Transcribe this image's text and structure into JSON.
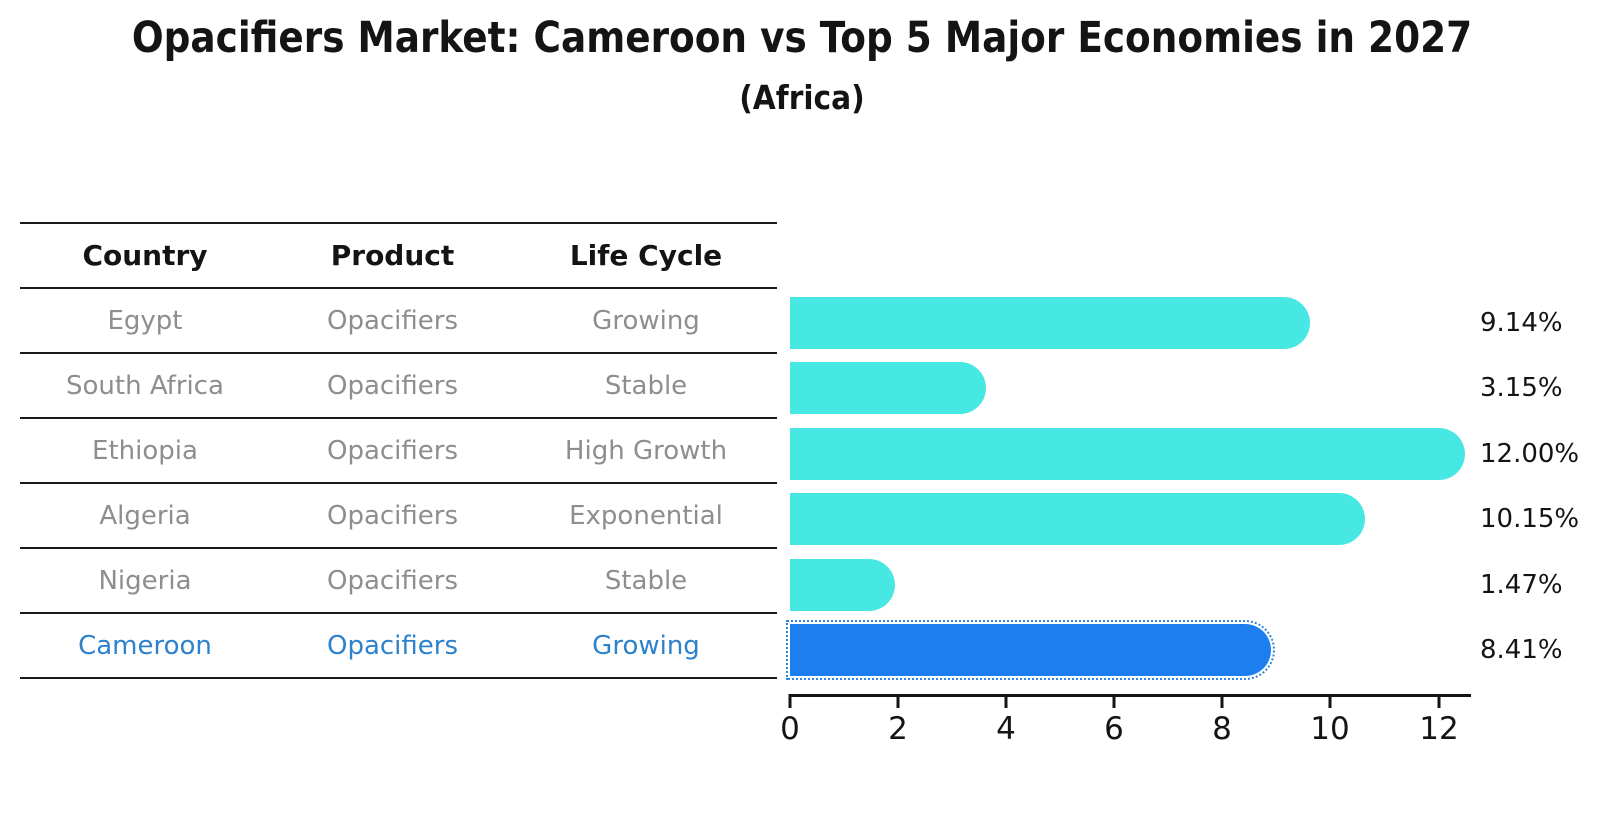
{
  "title": "Opacifiers Market: Cameroon vs Top 5 Major Economies in 2027",
  "subtitle": "(Africa)",
  "table": {
    "headers": [
      "Country",
      "Product",
      "Life Cycle"
    ],
    "rows": [
      {
        "country": "Egypt",
        "product": "Opacifiers",
        "life_cycle": "Growing",
        "highlighted": false
      },
      {
        "country": "South Africa",
        "product": "Opacifiers",
        "life_cycle": "Stable",
        "highlighted": false
      },
      {
        "country": "Ethiopia",
        "product": "Opacifiers",
        "life_cycle": "High Growth",
        "highlighted": false
      },
      {
        "country": "Algeria",
        "product": "Opacifiers",
        "life_cycle": "Exponential",
        "highlighted": false
      },
      {
        "country": "Nigeria",
        "product": "Opacifiers",
        "life_cycle": "Stable",
        "highlighted": false
      },
      {
        "country": "Cameroon",
        "product": "Opacifiers",
        "life_cycle": "Growing",
        "highlighted": true
      }
    ]
  },
  "chart_data": {
    "type": "bar",
    "orientation": "horizontal",
    "title": "Opacifiers Market: Cameroon vs Top 5 Major Economies in 2027",
    "subtitle": "(Africa)",
    "categories": [
      "Egypt",
      "South Africa",
      "Ethiopia",
      "Algeria",
      "Nigeria",
      "Cameroon"
    ],
    "values": [
      9.14,
      3.15,
      12.0,
      10.15,
      1.47,
      8.41
    ],
    "value_labels": [
      "9.14%",
      "3.15%",
      "12.00%",
      "10.15%",
      "1.47%",
      "8.41%"
    ],
    "unit": "%",
    "xlim": [
      0,
      12.6
    ],
    "xticks": [
      0,
      2,
      4,
      6,
      8,
      10,
      12
    ],
    "grid": false,
    "legend": false,
    "highlight_index": 5,
    "bar_color": "#47E8E3",
    "highlight_bar_color": "#1B7FF0",
    "highlight_text_color": "#2E81CC"
  }
}
